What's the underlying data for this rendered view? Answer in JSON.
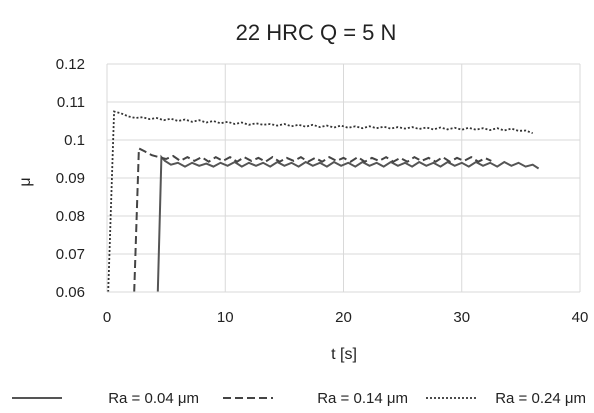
{
  "chart_data": {
    "type": "line",
    "title": "22 HRC    Q = 5 N",
    "xlabel": "t [s]",
    "ylabel": "μ",
    "xlim": [
      0,
      40
    ],
    "ylim": [
      0.06,
      0.12
    ],
    "x_ticks": [
      "0",
      "10",
      "20",
      "30",
      "40"
    ],
    "y_ticks": [
      "0.06",
      "0.07",
      "0.08",
      "0.09",
      "0.1",
      "0.11",
      "0.12"
    ],
    "grid": true,
    "legend_position": "bottom",
    "series": [
      {
        "name": "Ra = 0.04 μm",
        "style": "solid",
        "color": "#555555",
        "x": [
          4.3,
          4.6,
          4.9,
          5.4,
          6,
          6.6,
          7.2,
          7.8,
          8.4,
          9,
          9.6,
          10.2,
          10.8,
          11.4,
          12,
          12.6,
          13.2,
          13.8,
          14.4,
          15,
          15.6,
          16.2,
          16.8,
          17.4,
          18,
          18.6,
          19.2,
          19.8,
          20.4,
          21,
          21.6,
          22.2,
          22.8,
          23.4,
          24,
          24.6,
          25.2,
          25.8,
          26.4,
          27,
          27.6,
          28.2,
          28.8,
          29.4,
          30,
          30.6,
          31.2,
          31.8,
          32.4,
          33,
          33.6,
          34.2,
          34.8,
          35.4,
          36,
          36.5
        ],
        "y": [
          0.06,
          0.0955,
          0.0945,
          0.0935,
          0.094,
          0.093,
          0.094,
          0.0932,
          0.0938,
          0.093,
          0.094,
          0.0932,
          0.0942,
          0.093,
          0.094,
          0.0932,
          0.094,
          0.093,
          0.0942,
          0.0932,
          0.094,
          0.093,
          0.0942,
          0.0932,
          0.094,
          0.093,
          0.0942,
          0.0932,
          0.094,
          0.093,
          0.0942,
          0.0932,
          0.094,
          0.093,
          0.0942,
          0.0932,
          0.094,
          0.093,
          0.0942,
          0.0932,
          0.094,
          0.093,
          0.0942,
          0.0932,
          0.094,
          0.093,
          0.0942,
          0.0932,
          0.094,
          0.093,
          0.0942,
          0.0932,
          0.094,
          0.093,
          0.0935,
          0.0925
        ]
      },
      {
        "name": "Ra = 0.14 μm",
        "style": "dashed",
        "color": "#444444",
        "x": [
          2.3,
          2.7,
          3.2,
          3.8,
          4.4,
          5,
          5.6,
          6.2,
          6.8,
          7.4,
          8,
          8.6,
          9.2,
          9.8,
          10.4,
          11,
          11.6,
          12.2,
          12.8,
          13.4,
          14,
          14.6,
          15.2,
          15.8,
          16.4,
          17,
          17.6,
          18.2,
          18.8,
          19.4,
          20,
          20.6,
          21.2,
          21.8,
          22.4,
          23,
          23.6,
          24.2,
          24.8,
          25.4,
          26,
          26.6,
          27.2,
          27.8,
          28.4,
          29,
          29.6,
          30.2,
          30.8,
          31.4,
          32,
          32.5
        ],
        "y": [
          0.06,
          0.0978,
          0.097,
          0.096,
          0.0955,
          0.095,
          0.0958,
          0.0945,
          0.0955,
          0.0945,
          0.0955,
          0.0943,
          0.0955,
          0.0945,
          0.0955,
          0.0943,
          0.0955,
          0.0945,
          0.0953,
          0.0943,
          0.0955,
          0.0943,
          0.0953,
          0.0945,
          0.0955,
          0.0943,
          0.0953,
          0.0943,
          0.0955,
          0.0945,
          0.0953,
          0.0943,
          0.0955,
          0.0943,
          0.0953,
          0.0945,
          0.0955,
          0.0943,
          0.0953,
          0.0943,
          0.0955,
          0.0945,
          0.0953,
          0.0943,
          0.0955,
          0.0943,
          0.0953,
          0.0945,
          0.0955,
          0.0943,
          0.0952,
          0.0945
        ]
      },
      {
        "name": "Ra = 0.24 μm",
        "style": "dotted",
        "color": "#333333",
        "x": [
          0.1,
          0.6,
          1.2,
          1.8,
          2.4,
          3,
          3.6,
          4.2,
          4.8,
          5.4,
          6,
          6.6,
          7.2,
          7.8,
          8.4,
          9,
          9.6,
          10.2,
          10.8,
          11.4,
          12,
          12.6,
          13.2,
          13.8,
          14.4,
          15,
          15.6,
          16.2,
          16.8,
          17.4,
          18,
          18.6,
          19.2,
          19.8,
          20.4,
          21,
          21.6,
          22.2,
          22.8,
          23.4,
          24,
          24.6,
          25.2,
          25.8,
          26.4,
          27,
          27.6,
          28.2,
          28.8,
          29.4,
          30,
          30.6,
          31.2,
          31.8,
          32.4,
          33,
          33.6,
          34.2,
          34.8,
          35.4,
          36
        ],
        "y": [
          0.06,
          0.1075,
          0.107,
          0.1062,
          0.1058,
          0.106,
          0.1055,
          0.1058,
          0.1052,
          0.1056,
          0.105,
          0.1054,
          0.1048,
          0.1052,
          0.1046,
          0.105,
          0.1044,
          0.1048,
          0.1042,
          0.1046,
          0.104,
          0.1044,
          0.104,
          0.1042,
          0.1038,
          0.1042,
          0.1036,
          0.104,
          0.1035,
          0.104,
          0.1034,
          0.1038,
          0.1033,
          0.1038,
          0.1032,
          0.1036,
          0.1031,
          0.1036,
          0.1031,
          0.1035,
          0.103,
          0.1034,
          0.103,
          0.1034,
          0.1029,
          0.1033,
          0.1028,
          0.1033,
          0.1028,
          0.1032,
          0.1027,
          0.1032,
          0.1027,
          0.1031,
          0.1026,
          0.1031,
          0.1025,
          0.103,
          0.1024,
          0.1025,
          0.1018
        ]
      }
    ]
  }
}
